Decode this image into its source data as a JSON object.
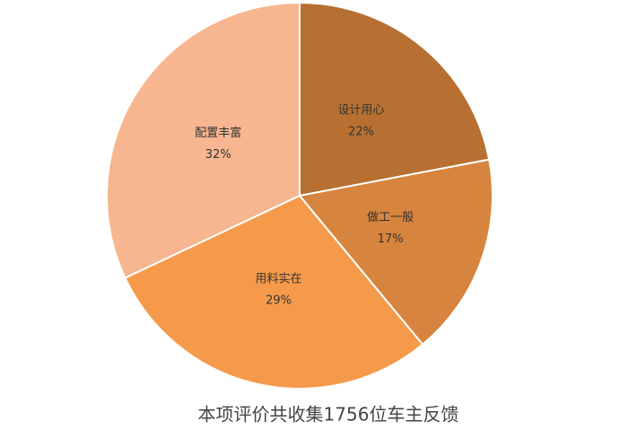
{
  "chart_data": {
    "type": "pie",
    "title": "本项评价共收集1756位车主反馈",
    "categories": [
      "设计用心",
      "做工一般",
      "用料实在",
      "配置丰富"
    ],
    "values": [
      22,
      17,
      29,
      32
    ],
    "value_labels": [
      "22%",
      "17%",
      "29%",
      "32%"
    ],
    "colors": [
      "#b77031",
      "#d6843e",
      "#f59a4b",
      "#f7b690"
    ]
  }
}
